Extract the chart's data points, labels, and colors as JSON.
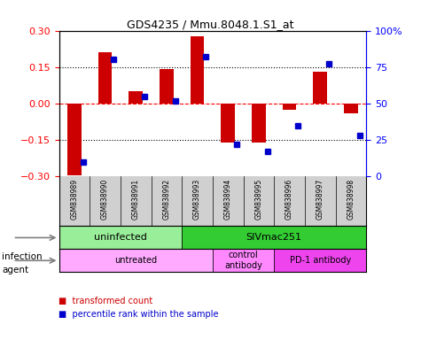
{
  "title": "GDS4235 / Mmu.8048.1.S1_at",
  "samples": [
    "GSM838989",
    "GSM838990",
    "GSM838991",
    "GSM838992",
    "GSM838993",
    "GSM838994",
    "GSM838995",
    "GSM838996",
    "GSM838997",
    "GSM838998"
  ],
  "transformed_count": [
    -0.295,
    0.21,
    0.05,
    0.14,
    0.275,
    -0.16,
    -0.16,
    -0.025,
    0.13,
    -0.04
  ],
  "percentile_rank": [
    10,
    80,
    55,
    52,
    82,
    22,
    17,
    35,
    77,
    28
  ],
  "ylim": [
    -0.3,
    0.3
  ],
  "yticks": [
    -0.3,
    -0.15,
    0,
    0.15,
    0.3
  ],
  "right_yticks": [
    0,
    25,
    50,
    75,
    100
  ],
  "bar_color": "#cc0000",
  "dot_color": "#0000cc",
  "infection_groups": [
    {
      "label": "uninfected",
      "start": 0,
      "end": 4,
      "color": "#99ee99"
    },
    {
      "label": "SIVmac251",
      "start": 4,
      "end": 10,
      "color": "#33cc33"
    }
  ],
  "agent_groups": [
    {
      "label": "untreated",
      "start": 0,
      "end": 5,
      "color": "#ffaaff"
    },
    {
      "label": "control\nantibody",
      "start": 5,
      "end": 7,
      "color": "#ff88ff"
    },
    {
      "label": "PD-1 antibody",
      "start": 7,
      "end": 10,
      "color": "#ee44ee"
    }
  ],
  "infection_label": "infection",
  "agent_label": "agent"
}
